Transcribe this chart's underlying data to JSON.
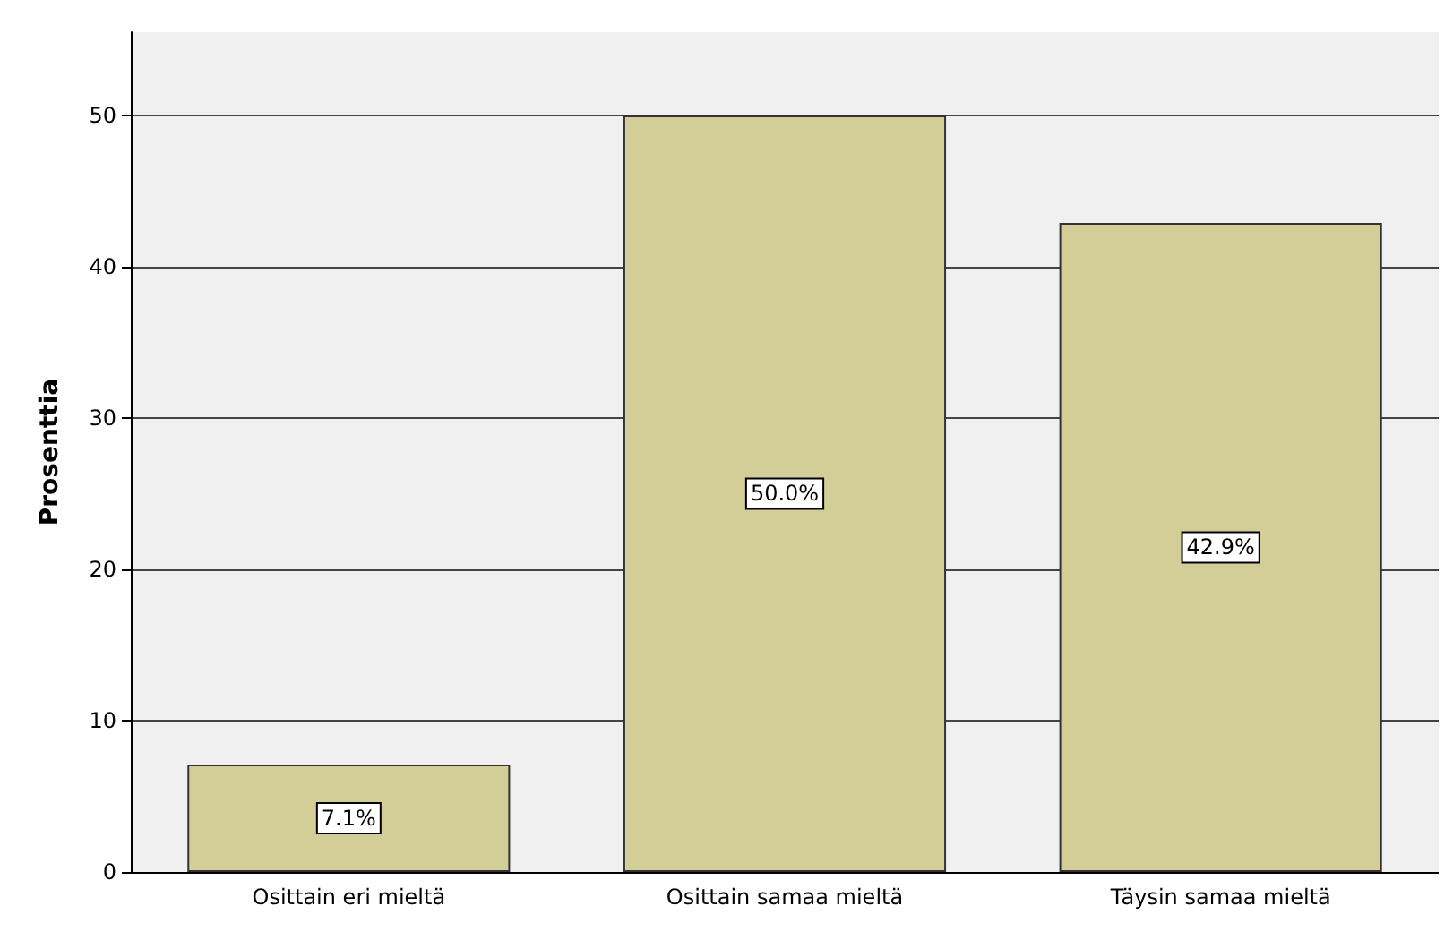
{
  "chart_data": {
    "type": "bar",
    "ylabel": "Prosenttia",
    "categories": [
      "Osittain eri mieltä",
      "Osittain samaa mieltä",
      "Täysin samaa mieltä"
    ],
    "values": [
      7.1,
      50.0,
      42.9
    ],
    "color": "#d3ce98",
    "value_labels": [
      "7.1%",
      "50.0%",
      "42.9%"
    ],
    "ylim": [
      0,
      55.5
    ],
    "yticks": [
      0,
      10,
      20,
      30,
      40,
      50
    ],
    "grid": "y"
  }
}
